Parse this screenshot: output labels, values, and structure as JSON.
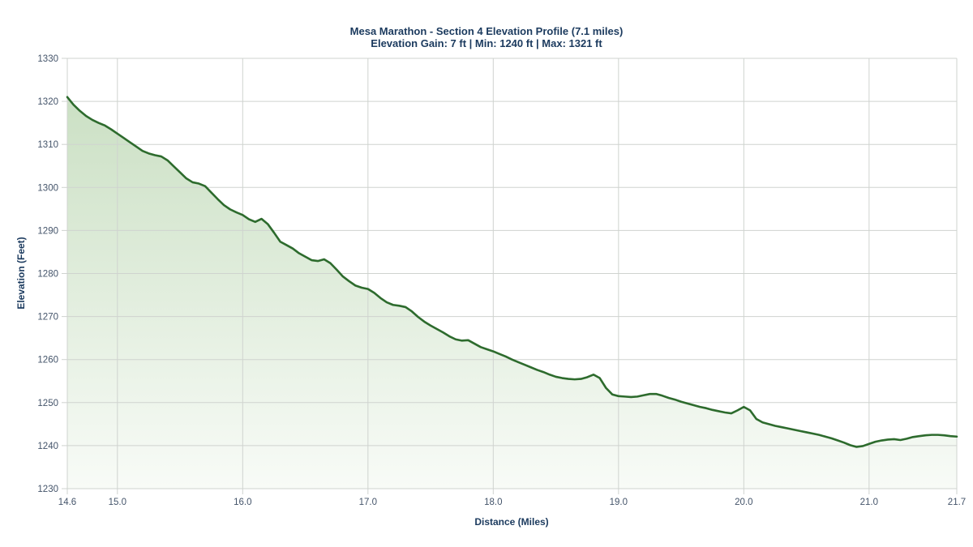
{
  "title": "Mesa Marathon - Section 4 Elevation Profile (7.1 miles)",
  "subtitle": "Elevation Gain: 7 ft | Min: 1240 ft | Max: 1321 ft",
  "colors": {
    "title": "#1b3a5e",
    "tick": "#44546a",
    "grid": "#cfd3cf",
    "line": "#2d6b2d",
    "fill_top": "#cbe0c4",
    "fill_bottom": "#f8fbf7",
    "background": "#ffffff"
  },
  "chart_data": {
    "type": "area",
    "title": "Mesa Marathon - Section 4 Elevation Profile (7.1 miles)",
    "subtitle": "Elevation Gain: 7 ft | Min: 1240 ft | Max: 1321 ft",
    "xlabel": "Distance (Miles)",
    "ylabel": "Elevation (Feet)",
    "xlim": [
      14.6,
      21.7
    ],
    "ylim": [
      1230,
      1330
    ],
    "grid": true,
    "legend": false,
    "x_ticks": [
      14.6,
      15.0,
      16.0,
      17.0,
      18.0,
      19.0,
      20.0,
      21.0,
      21.7
    ],
    "x_tick_labels": [
      "14.6",
      "15.0",
      "16.0",
      "17.0",
      "18.0",
      "19.0",
      "20.0",
      "21.0",
      "21.7"
    ],
    "y_ticks": [
      1230,
      1240,
      1250,
      1260,
      1270,
      1280,
      1290,
      1300,
      1310,
      1320,
      1330
    ],
    "stats": {
      "elevation_gain_ft": 7,
      "min_ft": 1240,
      "max_ft": 1321,
      "section_miles": 7.1
    },
    "series": [
      {
        "name": "Elevation",
        "x": [
          14.6,
          14.65,
          14.7,
          14.75,
          14.8,
          14.85,
          14.9,
          14.95,
          15.0,
          15.05,
          15.1,
          15.15,
          15.2,
          15.25,
          15.3,
          15.35,
          15.4,
          15.45,
          15.5,
          15.55,
          15.6,
          15.65,
          15.7,
          15.75,
          15.8,
          15.85,
          15.9,
          15.95,
          16.0,
          16.05,
          16.1,
          16.15,
          16.2,
          16.25,
          16.3,
          16.35,
          16.4,
          16.45,
          16.5,
          16.55,
          16.6,
          16.65,
          16.7,
          16.75,
          16.8,
          16.85,
          16.9,
          16.95,
          17.0,
          17.05,
          17.1,
          17.15,
          17.2,
          17.25,
          17.3,
          17.35,
          17.4,
          17.45,
          17.5,
          17.55,
          17.6,
          17.65,
          17.7,
          17.75,
          17.8,
          17.85,
          17.9,
          17.95,
          18.0,
          18.05,
          18.1,
          18.15,
          18.2,
          18.25,
          18.3,
          18.35,
          18.4,
          18.45,
          18.5,
          18.55,
          18.6,
          18.65,
          18.7,
          18.75,
          18.8,
          18.85,
          18.9,
          18.95,
          19.0,
          19.05,
          19.1,
          19.15,
          19.2,
          19.25,
          19.3,
          19.35,
          19.4,
          19.45,
          19.5,
          19.55,
          19.6,
          19.65,
          19.7,
          19.75,
          19.8,
          19.85,
          19.9,
          19.95,
          20.0,
          20.05,
          20.1,
          20.15,
          20.2,
          20.25,
          20.3,
          20.35,
          20.4,
          20.45,
          20.5,
          20.55,
          20.6,
          20.65,
          20.7,
          20.75,
          20.8,
          20.85,
          20.9,
          20.95,
          21.0,
          21.05,
          21.1,
          21.15,
          21.2,
          21.25,
          21.3,
          21.35,
          21.4,
          21.45,
          21.5,
          21.55,
          21.6,
          21.65,
          21.7
        ],
        "y": [
          1321.0,
          1319.2,
          1317.8,
          1316.6,
          1315.7,
          1315.0,
          1314.4,
          1313.5,
          1312.5,
          1311.5,
          1310.5,
          1309.5,
          1308.5,
          1307.9,
          1307.5,
          1307.2,
          1306.3,
          1304.9,
          1303.5,
          1302.1,
          1301.2,
          1300.9,
          1300.3,
          1298.8,
          1297.3,
          1295.9,
          1294.9,
          1294.2,
          1293.6,
          1292.6,
          1292.0,
          1292.7,
          1291.5,
          1289.5,
          1287.4,
          1286.6,
          1285.8,
          1284.7,
          1283.9,
          1283.1,
          1282.9,
          1283.3,
          1282.4,
          1280.9,
          1279.3,
          1278.2,
          1277.2,
          1276.7,
          1276.4,
          1275.5,
          1274.3,
          1273.3,
          1272.7,
          1272.5,
          1272.2,
          1271.2,
          1269.9,
          1268.8,
          1267.9,
          1267.1,
          1266.3,
          1265.4,
          1264.7,
          1264.4,
          1264.5,
          1263.7,
          1262.9,
          1262.4,
          1261.9,
          1261.3,
          1260.7,
          1260.0,
          1259.4,
          1258.8,
          1258.2,
          1257.6,
          1257.1,
          1256.5,
          1256.0,
          1255.7,
          1255.5,
          1255.4,
          1255.5,
          1255.9,
          1256.5,
          1255.7,
          1253.4,
          1251.9,
          1251.5,
          1251.4,
          1251.3,
          1251.4,
          1251.7,
          1252.0,
          1252.0,
          1251.6,
          1251.1,
          1250.7,
          1250.2,
          1249.8,
          1249.4,
          1249.0,
          1248.7,
          1248.3,
          1248.0,
          1247.7,
          1247.5,
          1248.2,
          1249.0,
          1248.2,
          1246.2,
          1245.4,
          1245.0,
          1244.6,
          1244.3,
          1244.0,
          1243.7,
          1243.4,
          1243.1,
          1242.8,
          1242.5,
          1242.1,
          1241.7,
          1241.2,
          1240.7,
          1240.1,
          1239.7,
          1239.9,
          1240.4,
          1240.9,
          1241.2,
          1241.4,
          1241.5,
          1241.3,
          1241.6,
          1242.0,
          1242.2,
          1242.4,
          1242.5,
          1242.5,
          1242.4,
          1242.2,
          1242.1
        ]
      }
    ]
  }
}
